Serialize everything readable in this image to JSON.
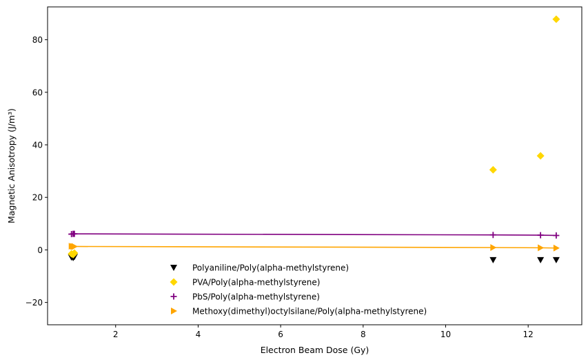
{
  "chart_data": {
    "type": "scatter",
    "title": "",
    "xlabel": "Electron Beam Dose (Gy)",
    "ylabel": "Magnetic Anisotropy (J/m³)",
    "xlim": [
      0.35,
      13.3
    ],
    "ylim": [
      -28.5,
      92.5
    ],
    "xticks": [
      2,
      4,
      6,
      8,
      10,
      12
    ],
    "yticks": [
      -20,
      0,
      20,
      40,
      60,
      80
    ],
    "xtick_labels": [
      "2",
      "4",
      "6",
      "8",
      "10",
      "12"
    ],
    "ytick_labels": [
      "−20",
      "0",
      "20",
      "40",
      "60",
      "80"
    ],
    "grid": false,
    "legend_position": "lower-center",
    "series": [
      {
        "name": "Polyaniline/Poly(alpha-methylstyrene)",
        "marker": "triangle-down",
        "color": "#000000",
        "line": false,
        "x": [
          0.93,
          0.97,
          1.0,
          11.15,
          12.3,
          12.68
        ],
        "y": [
          -2.8,
          -3.0,
          -2.6,
          -3.8,
          -3.8,
          -3.8
        ]
      },
      {
        "name": "PVA/Poly(alpha-methylstyrene)",
        "marker": "diamond",
        "color": "#FFD700",
        "line": false,
        "x": [
          0.93,
          0.97,
          1.0,
          11.15,
          12.3,
          12.68
        ],
        "y": [
          -1.5,
          -1.8,
          -1.2,
          30.5,
          35.8,
          87.8
        ]
      },
      {
        "name": "PbS/Poly(alpha-methylstyrene)",
        "marker": "plus",
        "color": "#800080",
        "line": true,
        "x": [
          0.93,
          0.97,
          1.0,
          11.15,
          12.3,
          12.68
        ],
        "y": [
          6.0,
          6.1,
          6.1,
          5.7,
          5.6,
          5.5
        ]
      },
      {
        "name": "Methoxy(dimethyl)octylsilane/Poly(alpha-methylstyrene)",
        "marker": "triangle-right",
        "color": "#FFA500",
        "line": true,
        "x": [
          0.93,
          0.97,
          1.0,
          11.15,
          12.3,
          12.68
        ],
        "y": [
          1.4,
          1.3,
          1.3,
          0.9,
          0.8,
          0.7
        ]
      }
    ]
  }
}
